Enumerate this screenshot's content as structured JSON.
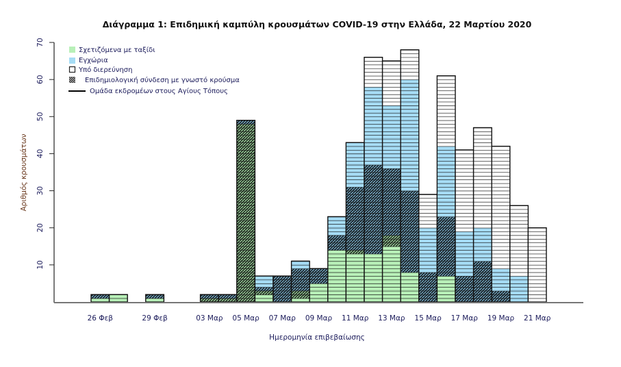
{
  "chart_data": {
    "type": "bar",
    "stacked": true,
    "title": "Διάγραμμα 1: Επιδημική καμπύλη κρουσμάτων COVID-19 στην Ελλάδα, 22 Μαρτίου 2020",
    "xlabel": "Ημερομηνία επιβεβαίωσης",
    "ylabel": "Αριθμός κρουσμάτων",
    "ylim": [
      0,
      70
    ],
    "yticks": [
      10,
      20,
      30,
      40,
      50,
      60,
      70
    ],
    "grid": false,
    "legend_position": "top-left",
    "legend": [
      {
        "key": "travel",
        "label": "Σχετιζόμενα με ταξίδι",
        "style": "fill",
        "color": "#b8f0b8"
      },
      {
        "key": "local",
        "label": "Εγχώρια",
        "style": "fill",
        "color": "#a6dcf5"
      },
      {
        "key": "investigation",
        "label": "Υπό διερεύνηση",
        "style": "outline",
        "color": "#ffffff"
      },
      {
        "key": "linked",
        "label": "Επιδημιολογική σύνδεση με γνωστό κρούσμα",
        "style": "hatch",
        "color": "#222222"
      },
      {
        "key": "pilgrims",
        "label": "Ομάδα εκδρομέων στους Αγίους Τόπους",
        "style": "line",
        "color": "#000000"
      }
    ],
    "categories": [
      "26 Φεβ",
      "27 Φεβ",
      "28 Φεβ",
      "29 Φεβ",
      "01 Μαρ",
      "02 Μαρ",
      "03 Μαρ",
      "04 Μαρ",
      "05 Μαρ",
      "06 Μαρ",
      "07 Μαρ",
      "08 Μαρ",
      "09 Μαρ",
      "10 Μαρ",
      "11 Μαρ",
      "12 Μαρ",
      "13 Μαρ",
      "14 Μαρ",
      "15 Μαρ",
      "16 Μαρ",
      "17 Μαρ",
      "18 Μαρ",
      "19 Μαρ",
      "20 Μαρ",
      "21 Μαρ"
    ],
    "tick_labels": [
      {
        "index": 0,
        "label": "26 Φεβ"
      },
      {
        "index": 3,
        "label": "29 Φεβ"
      },
      {
        "index": 6,
        "label": "03 Μαρ"
      },
      {
        "index": 8,
        "label": "05 Μαρ"
      },
      {
        "index": 10,
        "label": "07 Μαρ"
      },
      {
        "index": 12,
        "label": "09 Μαρ"
      },
      {
        "index": 14,
        "label": "11 Μαρ"
      },
      {
        "index": 16,
        "label": "13 Μαρ"
      },
      {
        "index": 18,
        "label": "15 Μαρ"
      },
      {
        "index": 20,
        "label": "17 Μαρ"
      },
      {
        "index": 22,
        "label": "19 Μαρ"
      },
      {
        "index": 24,
        "label": "21 Μαρ"
      }
    ],
    "series": [
      {
        "name": "Σχετιζόμενα με ταξίδι",
        "key": "travel",
        "values": [
          1,
          2,
          0,
          1,
          0,
          0,
          0,
          0,
          0,
          2,
          0,
          1,
          5,
          14,
          13,
          13,
          15,
          8,
          0,
          7,
          0,
          0,
          0,
          0,
          0
        ]
      },
      {
        "name": "Σχετιζόμενα με ταξίδι + επιδημιολογική σύνδεση",
        "key": "travel_linked",
        "values": [
          0,
          0,
          0,
          0,
          0,
          0,
          1,
          1,
          48,
          1,
          0,
          2,
          0,
          0,
          1,
          0,
          3,
          0,
          0,
          0,
          0,
          0,
          0,
          0,
          0
        ]
      },
      {
        "name": "Εγχώρια + επιδημιολογική σύνδεση",
        "key": "local_linked",
        "values": [
          1,
          0,
          0,
          1,
          0,
          0,
          1,
          1,
          1,
          1,
          7,
          6,
          4,
          4,
          17,
          24,
          18,
          22,
          8,
          16,
          7,
          11,
          3,
          0,
          0
        ]
      },
      {
        "name": "Εγχώρια",
        "key": "local",
        "values": [
          0,
          0,
          0,
          0,
          0,
          0,
          0,
          0,
          0,
          3,
          0,
          2,
          0,
          5,
          12,
          21,
          17,
          30,
          12,
          19,
          12,
          9,
          6,
          7,
          0
        ]
      },
      {
        "name": "Υπό διερεύνηση",
        "key": "investigation",
        "values": [
          0,
          0,
          0,
          0,
          0,
          0,
          0,
          0,
          0,
          0,
          0,
          0,
          0,
          0,
          0,
          8,
          12,
          8,
          9,
          19,
          22,
          27,
          33,
          19,
          20
        ]
      }
    ],
    "totals": [
      2,
      2,
      0,
      2,
      0,
      0,
      2,
      2,
      49,
      7,
      7,
      11,
      9,
      23,
      43,
      66,
      65,
      68,
      29,
      61,
      41,
      47,
      42,
      26,
      20
    ]
  }
}
